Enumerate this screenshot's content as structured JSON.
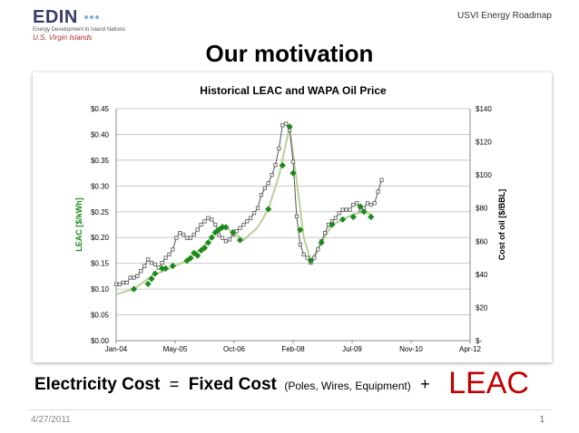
{
  "header": {
    "logo_text": "EDIN",
    "logo_subtitle": "Energy Development in Island Nations",
    "logo_region": "U.S. Virgin Islands",
    "tagline": "USVI Energy Roadmap"
  },
  "slide": {
    "title": "Our motivation",
    "formula": {
      "term1": "Electricity Cost",
      "equals": "=",
      "term2": "Fixed Cost",
      "term2_detail": "(Poles, Wires, Equipment)",
      "plus": "+",
      "term3": "LEAC"
    },
    "date": "4/27/2011",
    "page_number": "1"
  },
  "colors": {
    "leac": "#1a8a1a",
    "oil": "#555555",
    "trend": "#b8cf9a",
    "leac_word": "#c00000"
  },
  "chart_data": {
    "type": "line",
    "title": "Historical LEAC and WAPA Oil Price",
    "xlabel": "",
    "ylabel": "LEAC [$/kWh]",
    "y2label": "Cost of oil [$/BBL]",
    "x_ticks": [
      "Jan-04",
      "May-05",
      "Oct-06",
      "Feb-08",
      "Jul-09",
      "Nov-10",
      "Apr-12"
    ],
    "x_range_months": [
      0,
      100
    ],
    "y_ticks": [
      "$0.00",
      "$0.05",
      "$0.10",
      "$0.15",
      "$0.20",
      "$0.25",
      "$0.30",
      "$0.35",
      "$0.40",
      "$0.45"
    ],
    "ylim": [
      0,
      0.45
    ],
    "y2_ticks": [
      "$-",
      "$20",
      "$40",
      "$60",
      "$80",
      "$100",
      "$120",
      "$140"
    ],
    "y2lim": [
      0,
      140
    ],
    "grid": true,
    "series": [
      {
        "name": "",
        "axis": "y2",
        "marker": "square",
        "points": [
          [
            0,
            34
          ],
          [
            1,
            34
          ],
          [
            2,
            35
          ],
          [
            3,
            35
          ],
          [
            4,
            38
          ],
          [
            5,
            38
          ],
          [
            6,
            39
          ],
          [
            7,
            42
          ],
          [
            8,
            45
          ],
          [
            9,
            49
          ],
          [
            10,
            47
          ],
          [
            11,
            46
          ],
          [
            12,
            44
          ],
          [
            13,
            47
          ],
          [
            14,
            50
          ],
          [
            15,
            52
          ],
          [
            16,
            55
          ],
          [
            17,
            62
          ],
          [
            18,
            65
          ],
          [
            19,
            64
          ],
          [
            20,
            62
          ],
          [
            21,
            62
          ],
          [
            22,
            64
          ],
          [
            23,
            67
          ],
          [
            24,
            70
          ],
          [
            25,
            72
          ],
          [
            26,
            74
          ],
          [
            27,
            73
          ],
          [
            28,
            70
          ],
          [
            29,
            64
          ],
          [
            30,
            62
          ],
          [
            31,
            60
          ],
          [
            32,
            61
          ],
          [
            33,
            64
          ],
          [
            34,
            66
          ],
          [
            35,
            68
          ],
          [
            36,
            70
          ],
          [
            37,
            72
          ],
          [
            38,
            74
          ],
          [
            39,
            77
          ],
          [
            40,
            80
          ],
          [
            41,
            88
          ],
          [
            42,
            92
          ],
          [
            43,
            95
          ],
          [
            44,
            100
          ],
          [
            45,
            106
          ],
          [
            46,
            116
          ],
          [
            47,
            130
          ],
          [
            48,
            131
          ],
          [
            49,
            127
          ],
          [
            50,
            108
          ],
          [
            51,
            75
          ],
          [
            52,
            58
          ],
          [
            53,
            52
          ],
          [
            54,
            50
          ],
          [
            55,
            47
          ],
          [
            56,
            50
          ],
          [
            57,
            55
          ],
          [
            58,
            60
          ],
          [
            59,
            65
          ],
          [
            60,
            70
          ],
          [
            61,
            72
          ],
          [
            62,
            74
          ],
          [
            63,
            77
          ],
          [
            64,
            79
          ],
          [
            65,
            79
          ],
          [
            66,
            79
          ],
          [
            67,
            82
          ],
          [
            68,
            83
          ],
          [
            69,
            79
          ],
          [
            70,
            80
          ],
          [
            71,
            83
          ],
          [
            72,
            82
          ],
          [
            73,
            83
          ],
          [
            74,
            90
          ],
          [
            75,
            97
          ]
        ]
      },
      {
        "name": "",
        "axis": "y",
        "marker": "diamond",
        "points": [
          [
            5,
            0.1
          ],
          [
            9,
            0.11
          ],
          [
            10,
            0.12
          ],
          [
            11,
            0.13
          ],
          [
            13,
            0.14
          ],
          [
            14,
            0.14
          ],
          [
            16,
            0.145
          ],
          [
            20,
            0.155
          ],
          [
            21,
            0.16
          ],
          [
            22,
            0.17
          ],
          [
            23,
            0.165
          ],
          [
            24,
            0.175
          ],
          [
            25,
            0.18
          ],
          [
            26,
            0.19
          ],
          [
            27,
            0.2
          ],
          [
            28,
            0.21
          ],
          [
            29,
            0.215
          ],
          [
            30,
            0.22
          ],
          [
            31,
            0.22
          ],
          [
            33,
            0.21
          ],
          [
            35,
            0.195
          ],
          [
            43,
            0.255
          ],
          [
            47,
            0.34
          ],
          [
            49,
            0.415
          ],
          [
            50,
            0.325
          ],
          [
            52,
            0.215
          ],
          [
            55,
            0.155
          ],
          [
            58,
            0.19
          ],
          [
            61,
            0.225
          ],
          [
            64,
            0.235
          ],
          [
            67,
            0.24
          ],
          [
            69,
            0.26
          ],
          [
            70,
            0.25
          ],
          [
            72,
            0.24
          ]
        ]
      },
      {
        "name": "",
        "axis": "y",
        "marker": "none",
        "points": [
          [
            0,
            0.09
          ],
          [
            5,
            0.1
          ],
          [
            10,
            0.125
          ],
          [
            15,
            0.14
          ],
          [
            20,
            0.155
          ],
          [
            25,
            0.185
          ],
          [
            30,
            0.225
          ],
          [
            33,
            0.21
          ],
          [
            36,
            0.195
          ],
          [
            40,
            0.22
          ],
          [
            43,
            0.255
          ],
          [
            46,
            0.32
          ],
          [
            49,
            0.415
          ],
          [
            51,
            0.31
          ],
          [
            53,
            0.2
          ],
          [
            55,
            0.155
          ],
          [
            58,
            0.19
          ],
          [
            61,
            0.225
          ],
          [
            64,
            0.235
          ],
          [
            67,
            0.245
          ],
          [
            70,
            0.25
          ],
          [
            72,
            0.245
          ]
        ]
      }
    ]
  }
}
